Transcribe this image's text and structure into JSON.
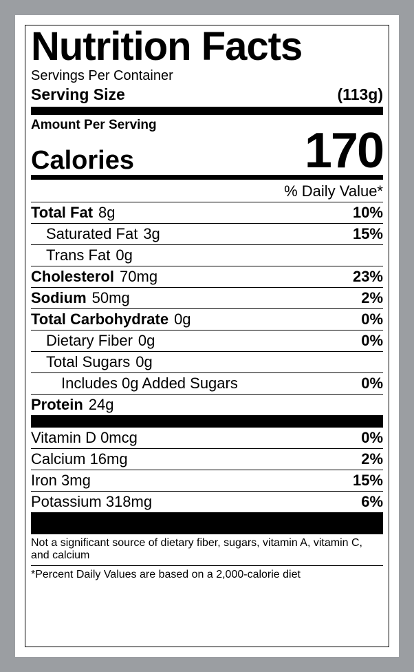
{
  "colors": {
    "page_bg": "#9b9ea2",
    "panel_bg": "#ffffff",
    "ink": "#000000"
  },
  "title": "Nutrition Facts",
  "servings_per_container_label": "Servings Per Container",
  "serving_size_label": "Serving Size",
  "serving_size_value": "(113g)",
  "amount_per_serving_label": "Amount Per Serving",
  "calories_label": "Calories",
  "calories_value": "170",
  "daily_value_heading": "% Daily Value*",
  "rows": {
    "total_fat": {
      "name": "Total Fat",
      "amount": "8g",
      "dv": "10%"
    },
    "sat_fat": {
      "name": "Saturated Fat",
      "amount": "3g",
      "dv": "15%"
    },
    "trans_fat": {
      "name": "Trans Fat",
      "amount": "0g",
      "dv": ""
    },
    "cholesterol": {
      "name": "Cholesterol",
      "amount": "70mg",
      "dv": "23%"
    },
    "sodium": {
      "name": "Sodium",
      "amount": "50mg",
      "dv": "2%"
    },
    "carb": {
      "name": "Total Carbohydrate",
      "amount": "0g",
      "dv": "0%"
    },
    "fiber": {
      "name": "Dietary Fiber",
      "amount": "0g",
      "dv": "0%"
    },
    "sugars": {
      "name": "Total Sugars",
      "amount": "0g",
      "dv": ""
    },
    "added_sugars": {
      "name": "Includes 0g Added Sugars",
      "amount": "",
      "dv": "0%"
    },
    "protein": {
      "name": "Protein",
      "amount": "24g",
      "dv": ""
    },
    "vitd": {
      "name": "Vitamin D 0mcg",
      "amount": "",
      "dv": "0%"
    },
    "calcium": {
      "name": "Calcium 16mg",
      "amount": "",
      "dv": "2%"
    },
    "iron": {
      "name": "Iron 3mg",
      "amount": "",
      "dv": "15%"
    },
    "potassium": {
      "name": "Potassium 318mg",
      "amount": "",
      "dv": "6%"
    }
  },
  "footnote1": "Not a significant source of dietary fiber, sugars, vitamin A, vitamin C, and calcium",
  "footnote2": "*Percent Daily Values are based on a 2,000-calorie diet"
}
